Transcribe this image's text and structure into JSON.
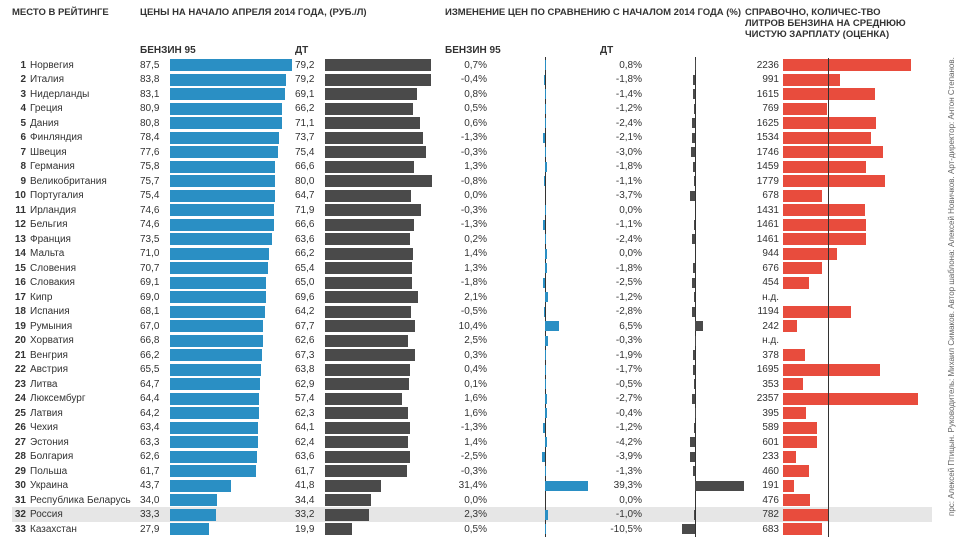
{
  "headers": {
    "rank": "МЕСТО В РЕЙТИНГЕ",
    "price": "ЦЕНЫ НА НАЧАЛО АПРЕЛЯ 2014 ГОДА, (РУБ./Л)",
    "change": "ИЗМЕНЕНИЕ ЦЕН ПО СРАВНЕНИЮ С НАЧАЛОМ 2014 ГОДА (%)",
    "reference": "СПРАВОЧНО, КОЛИЧЕС-ТВО ЛИТРОВ БЕНЗИНА НА СРЕДНЮЮ ЧИСТУЮ ЗАРПЛАТУ (ОЦЕНКА)",
    "benzin": "БЕНЗИН 95",
    "dt": "ДТ"
  },
  "credits": "прс: Алексей Птицын. Руководитель: Михаил Симаков. Автор шаблона: Алексей Новичков. Арт-директор: Антон Степанов.",
  "colors": {
    "benzin_bar": "#2a8fc4",
    "dt_bar": "#4a4a4a",
    "ref_bar": "#e84c3d",
    "highlight": "#e6e6e6",
    "axis": "#333333",
    "background": "#ffffff"
  },
  "scales": {
    "price_max": 90,
    "change_absmax_pct": 40,
    "ref_max": 2400,
    "ref_baseline": 782
  },
  "rows": [
    {
      "n": 1,
      "country": "Норвегия",
      "pb": 87.5,
      "pd": 79.2,
      "cb": 0.7,
      "cd": 0.8,
      "ref": 2236
    },
    {
      "n": 2,
      "country": "Италия",
      "pb": 83.8,
      "pd": 79.2,
      "cb": -0.4,
      "cd": -1.8,
      "ref": 991
    },
    {
      "n": 3,
      "country": "Нидерланды",
      "pb": 83.1,
      "pd": 69.1,
      "cb": 0.8,
      "cd": -1.4,
      "ref": 1615
    },
    {
      "n": 4,
      "country": "Греция",
      "pb": 80.9,
      "pd": 66.2,
      "cb": 0.5,
      "cd": -1.2,
      "ref": 769
    },
    {
      "n": 5,
      "country": "Дания",
      "pb": 80.8,
      "pd": 71.1,
      "cb": 0.6,
      "cd": -2.4,
      "ref": 1625
    },
    {
      "n": 6,
      "country": "Финляндия",
      "pb": 78.4,
      "pd": 73.7,
      "cb": -1.3,
      "cd": -2.1,
      "ref": 1534
    },
    {
      "n": 7,
      "country": "Швеция",
      "pb": 77.6,
      "pd": 75.4,
      "cb": -0.3,
      "cd": -3.0,
      "ref": 1746
    },
    {
      "n": 8,
      "country": "Германия",
      "pb": 75.8,
      "pd": 66.6,
      "cb": 1.3,
      "cd": -1.8,
      "ref": 1459
    },
    {
      "n": 9,
      "country": "Великобритания",
      "pb": 75.7,
      "pd": 80.0,
      "cb": -0.8,
      "cd": -1.1,
      "ref": 1779
    },
    {
      "n": 10,
      "country": "Португалия",
      "pb": 75.4,
      "pd": 64.7,
      "cb": 0.0,
      "cd": -3.7,
      "ref": 678
    },
    {
      "n": 11,
      "country": "Ирландия",
      "pb": 74.6,
      "pd": 71.9,
      "cb": -0.3,
      "cd": 0.0,
      "ref": 1431
    },
    {
      "n": 12,
      "country": "Бельгия",
      "pb": 74.6,
      "pd": 66.6,
      "cb": -1.3,
      "cd": -1.1,
      "ref": 1461
    },
    {
      "n": 13,
      "country": "Франция",
      "pb": 73.5,
      "pd": 63.6,
      "cb": 0.2,
      "cd": -2.4,
      "ref": 1461
    },
    {
      "n": 14,
      "country": "Мальта",
      "pb": 71.0,
      "pd": 66.2,
      "cb": 1.4,
      "cd": 0.0,
      "ref": 944
    },
    {
      "n": 15,
      "country": "Словения",
      "pb": 70.7,
      "pd": 65.4,
      "cb": 1.3,
      "cd": -1.8,
      "ref": 676
    },
    {
      "n": 16,
      "country": "Словакия",
      "pb": 69.1,
      "pd": 65.0,
      "cb": -1.8,
      "cd": -2.5,
      "ref": 454
    },
    {
      "n": 17,
      "country": "Кипр",
      "pb": 69.0,
      "pd": 69.6,
      "cb": 2.1,
      "cd": -1.2,
      "ref": null,
      "ref_label": "н.д."
    },
    {
      "n": 18,
      "country": "Испания",
      "pb": 68.1,
      "pd": 64.2,
      "cb": -0.5,
      "cd": -2.8,
      "ref": 1194
    },
    {
      "n": 19,
      "country": "Румыния",
      "pb": 67.0,
      "pd": 67.7,
      "cb": 10.4,
      "cd": 6.5,
      "ref": 242
    },
    {
      "n": 20,
      "country": "Хорватия",
      "pb": 66.8,
      "pd": 62.6,
      "cb": 2.5,
      "cd": -0.3,
      "ref": null,
      "ref_label": "н.д."
    },
    {
      "n": 21,
      "country": "Венгрия",
      "pb": 66.2,
      "pd": 67.3,
      "cb": 0.3,
      "cd": -1.9,
      "ref": 378
    },
    {
      "n": 22,
      "country": "Австрия",
      "pb": 65.5,
      "pd": 63.8,
      "cb": 0.4,
      "cd": -1.7,
      "ref": 1695
    },
    {
      "n": 23,
      "country": "Литва",
      "pb": 64.7,
      "pd": 62.9,
      "cb": 0.1,
      "cd": -0.5,
      "ref": 353
    },
    {
      "n": 24,
      "country": "Люксембург",
      "pb": 64.4,
      "pd": 57.4,
      "cb": 1.6,
      "cd": -2.7,
      "ref": 2357
    },
    {
      "n": 25,
      "country": "Латвия",
      "pb": 64.2,
      "pd": 62.3,
      "cb": 1.6,
      "cd": -0.4,
      "ref": 395
    },
    {
      "n": 26,
      "country": "Чехия",
      "pb": 63.4,
      "pd": 64.1,
      "cb": -1.3,
      "cd": -1.2,
      "ref": 589
    },
    {
      "n": 27,
      "country": "Эстония",
      "pb": 63.3,
      "pd": 62.4,
      "cb": 1.4,
      "cd": -4.2,
      "ref": 601
    },
    {
      "n": 28,
      "country": "Болгария",
      "pb": 62.6,
      "pd": 63.6,
      "cb": -2.5,
      "cd": -3.9,
      "ref": 233
    },
    {
      "n": 29,
      "country": "Польша",
      "pb": 61.7,
      "pd": 61.7,
      "cb": -0.3,
      "cd": -1.3,
      "ref": 460
    },
    {
      "n": 30,
      "country": "Украина",
      "pb": 43.7,
      "pd": 41.8,
      "cb": 31.4,
      "cd": 39.3,
      "ref": 191
    },
    {
      "n": 31,
      "country": "Республика Беларусь",
      "pb": 34.0,
      "pd": 34.4,
      "cb": 0.0,
      "cd": 0.0,
      "ref": 476
    },
    {
      "n": 32,
      "country": "Россия",
      "pb": 33.3,
      "pd": 33.2,
      "cb": 2.3,
      "cd": -1.0,
      "ref": 782,
      "highlight": true
    },
    {
      "n": 33,
      "country": "Казахстан",
      "pb": 27.9,
      "pd": 19.9,
      "cb": 0.5,
      "cd": -10.5,
      "ref": 683
    }
  ]
}
